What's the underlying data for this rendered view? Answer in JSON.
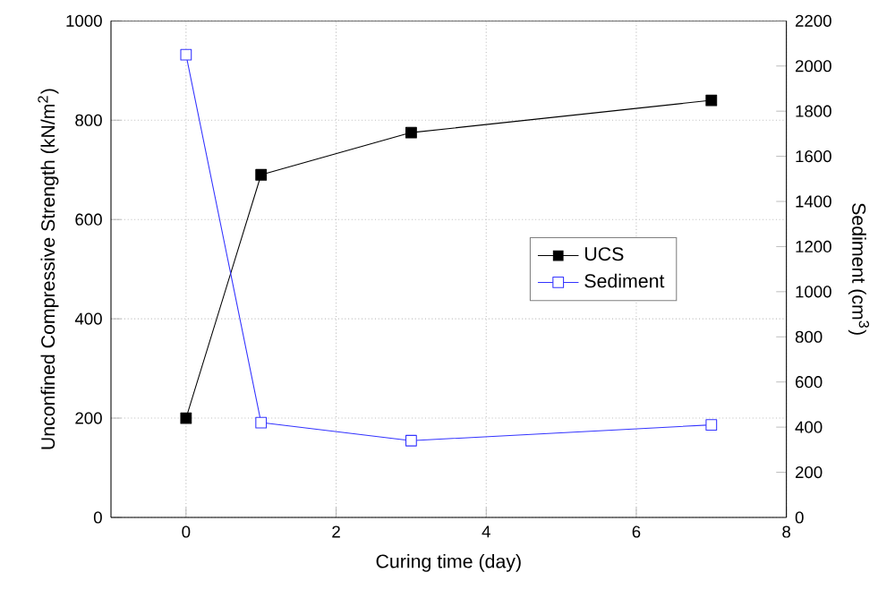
{
  "chart_data": {
    "type": "line",
    "xlabel": "Curing time (day)",
    "ylabel": "Unconfined Compressive Strength (kN/m$^{2}$)",
    "y2label": "Sediment (cm$^{3}$)",
    "xlim": [
      -1,
      8
    ],
    "xticks": [
      0,
      2,
      4,
      6,
      8
    ],
    "ylim": [
      0,
      1000
    ],
    "yticks": [
      0,
      200,
      400,
      600,
      800,
      1000
    ],
    "y2lim": [
      0,
      2200
    ],
    "y2ticks": [
      0,
      200,
      400,
      600,
      800,
      1000,
      1200,
      1400,
      1600,
      1800,
      2000,
      2200
    ],
    "x": [
      0,
      1,
      3,
      7
    ],
    "series": [
      {
        "name": "UCS",
        "color": "#000000",
        "values": [
          200,
          690,
          775,
          840
        ]
      },
      {
        "name": "Sediment",
        "color": "#3333ff",
        "axis": "y2",
        "values": [
          2050,
          420,
          340,
          410
        ]
      }
    ],
    "grid": true,
    "legend": "right",
    "marker": "square",
    "line_style": "solid"
  }
}
